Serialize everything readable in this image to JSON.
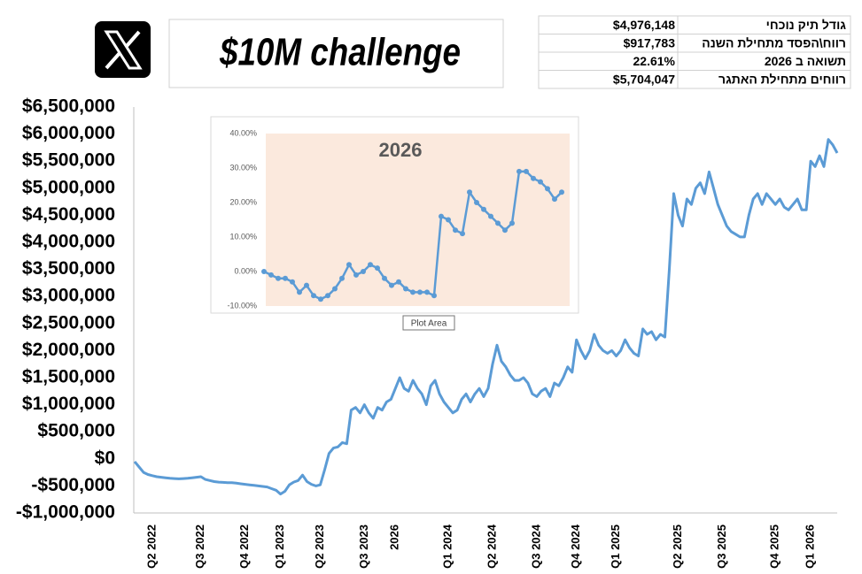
{
  "title": "$10M challenge",
  "stats": {
    "rows": [
      [
        "גודל תיק נוכחי",
        "$4,976,148"
      ],
      [
        "רווח\\הפסד מתחילת השנה",
        "$917,783"
      ],
      [
        "תשואה ב 2026",
        "22.61%"
      ],
      [
        "רווחים מתחילת האתגר",
        "$5,704,047"
      ]
    ]
  },
  "chart_data": [
    {
      "type": "line",
      "categories": [
        null,
        null,
        null,
        null,
        "Q2 2022",
        null,
        null,
        null,
        null,
        null,
        null,
        null,
        null,
        null,
        null,
        "Q3 2022",
        null,
        null,
        null,
        null,
        null,
        null,
        null,
        null,
        null,
        "Q4 2022",
        null,
        null,
        null,
        null,
        null,
        null,
        null,
        "Q1 2023",
        null,
        null,
        null,
        null,
        null,
        null,
        null,
        null,
        "Q2 2023",
        null,
        null,
        null,
        null,
        null,
        null,
        null,
        null,
        null,
        "Q3 2023",
        null,
        null,
        null,
        null,
        null,
        null,
        "2026",
        null,
        null,
        null,
        null,
        null,
        null,
        null,
        null,
        null,
        null,
        null,
        "Q1 2024",
        null,
        null,
        null,
        null,
        null,
        null,
        null,
        null,
        null,
        "Q2 2024",
        null,
        null,
        null,
        null,
        null,
        null,
        null,
        null,
        null,
        "Q3 2024",
        null,
        null,
        null,
        null,
        null,
        null,
        null,
        null,
        "Q4 2024",
        null,
        null,
        null,
        null,
        null,
        null,
        null,
        null,
        "Q1 2025",
        null,
        null,
        null,
        null,
        null,
        null,
        null,
        null,
        null,
        null,
        null,
        null,
        null,
        "Q2 2025",
        null,
        null,
        null,
        null,
        null,
        null,
        null,
        null,
        null,
        "Q3 2025",
        null,
        null,
        null,
        null,
        null,
        null,
        null,
        null,
        null,
        null,
        null,
        "Q4 2025",
        null,
        null,
        null,
        null,
        null,
        null,
        null,
        "Q1 2026",
        null,
        null,
        null,
        null,
        null,
        null
      ],
      "series": [
        {
          "name": null,
          "color": "#5b9bd5",
          "values": [
            -50000,
            -150000,
            -250000,
            -290000,
            -310000,
            -330000,
            -340000,
            -350000,
            -360000,
            -365000,
            -370000,
            -365000,
            -360000,
            -350000,
            -340000,
            -330000,
            -380000,
            -400000,
            -420000,
            -430000,
            -435000,
            -440000,
            -440000,
            -450000,
            -460000,
            -470000,
            -480000,
            -490000,
            -500000,
            -510000,
            -520000,
            -550000,
            -580000,
            -650000,
            -600000,
            -480000,
            -430000,
            -400000,
            -300000,
            -420000,
            -470000,
            -500000,
            -480000,
            -200000,
            100000,
            200000,
            220000,
            300000,
            280000,
            900000,
            950000,
            850000,
            1000000,
            850000,
            750000,
            950000,
            900000,
            1050000,
            1100000,
            1300000,
            1500000,
            1300000,
            1250000,
            1450000,
            1300000,
            1200000,
            1000000,
            1350000,
            1450000,
            1200000,
            1050000,
            950000,
            850000,
            900000,
            1100000,
            1200000,
            1050000,
            1200000,
            1300000,
            1150000,
            1300000,
            1750000,
            2100000,
            1800000,
            1700000,
            1550000,
            1450000,
            1450000,
            1500000,
            1400000,
            1200000,
            1150000,
            1250000,
            1300000,
            1150000,
            1400000,
            1350000,
            1500000,
            1700000,
            1600000,
            2200000,
            2000000,
            1850000,
            2000000,
            2300000,
            2100000,
            2000000,
            1950000,
            2000000,
            1900000,
            2000000,
            2200000,
            2050000,
            1950000,
            1900000,
            2400000,
            2300000,
            2350000,
            2200000,
            2300000,
            2250000,
            3500000,
            4900000,
            4500000,
            4300000,
            4800000,
            4700000,
            5000000,
            5100000,
            4900000,
            5300000,
            5000000,
            4700000,
            4500000,
            4300000,
            4200000,
            4150000,
            4100000,
            4100000,
            4500000,
            4800000,
            4900000,
            4700000,
            4900000,
            4800000,
            4700000,
            4800000,
            4650000,
            4600000,
            4700000,
            4800000,
            4600000,
            4600000,
            5500000,
            5400000,
            5600000,
            5400000,
            5900000,
            5800000,
            5650000
          ]
        }
      ],
      "ylim": [
        -1000000,
        6500000
      ],
      "yticks": [
        {
          "value": -1000000,
          "label": "-$1,000,000"
        },
        {
          "value": -500000,
          "label": "-$500,000"
        },
        {
          "value": 0,
          "label": "$0"
        },
        {
          "value": 500000,
          "label": "$500,000"
        },
        {
          "value": 1000000,
          "label": "$1,000,000"
        },
        {
          "value": 1500000,
          "label": "$1,500,000"
        },
        {
          "value": 2000000,
          "label": "$2,000,000"
        },
        {
          "value": 2500000,
          "label": "$2,500,000"
        },
        {
          "value": 3000000,
          "label": "$3,000,000"
        },
        {
          "value": 3500000,
          "label": "$3,500,000"
        },
        {
          "value": 4000000,
          "label": "$4,000,000"
        },
        {
          "value": 4500000,
          "label": "$4,500,000"
        },
        {
          "value": 5000000,
          "label": "$5,000,000"
        },
        {
          "value": 5500000,
          "label": "$5,500,000"
        },
        {
          "value": 6000000,
          "label": "$6,000,000"
        },
        {
          "value": 6500000,
          "label": "$6,500,000"
        }
      ],
      "grid": false
    },
    {
      "type": "line",
      "title": "2026",
      "annotation": "Plot Area",
      "series": [
        {
          "name": null,
          "color": "#5b9bd5",
          "marker": true,
          "values": [
            0,
            -1,
            -2,
            -2,
            -3,
            -6,
            -4,
            -7,
            -8,
            -7,
            -5,
            -2,
            2,
            -1,
            0,
            2,
            1,
            -2,
            -4,
            -3,
            -5,
            -6,
            -6,
            -6,
            -7,
            16,
            15,
            12,
            11,
            23,
            20,
            18,
            16,
            14,
            12,
            14,
            29,
            29,
            27,
            26,
            24,
            21,
            23
          ]
        }
      ],
      "ylim": [
        -10,
        40
      ],
      "yticks": [
        {
          "value": -10,
          "label": "-10.00%"
        },
        {
          "value": 0,
          "label": "0.00%"
        },
        {
          "value": 10,
          "label": "10.00%"
        },
        {
          "value": 20,
          "label": "20.00%"
        },
        {
          "value": 30,
          "label": "30.00%"
        },
        {
          "value": 40,
          "label": "40.00%"
        }
      ],
      "grid": false,
      "background": "#fbe9dd"
    }
  ]
}
